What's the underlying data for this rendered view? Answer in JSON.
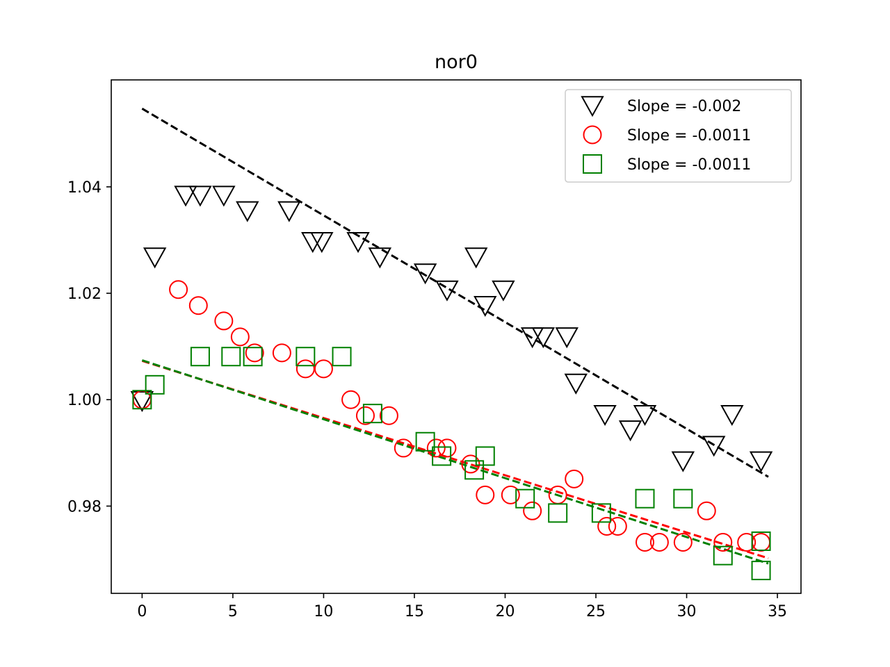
{
  "chart_data": {
    "type": "scatter",
    "title": "nor0",
    "xlabel": "",
    "ylabel": "",
    "xlim": [
      -1.7,
      36.3
    ],
    "ylim": [
      0.9636,
      1.0601
    ],
    "xticks": [
      0,
      5,
      10,
      15,
      20,
      25,
      30,
      35
    ],
    "yticks": [
      0.98,
      1.0,
      1.02,
      1.04
    ],
    "ytick_labels": [
      "0.98",
      "1.00",
      "1.02",
      "1.04"
    ],
    "grid": false,
    "legend_position": "top-right",
    "series": [
      {
        "name": "Slope = -0.002",
        "marker": "triangle-down",
        "color": "#000000",
        "x": [
          0,
          0.7,
          2.4,
          3.2,
          4.5,
          5.8,
          8.1,
          9.4,
          9.9,
          11.9,
          13.1,
          15.6,
          16.8,
          18.4,
          18.9,
          19.9,
          21.5,
          22.1,
          23.4,
          23.9,
          25.5,
          26.9,
          27.7,
          29.8,
          31.5,
          32.5,
          34.1
        ],
        "y": [
          0.9998,
          1.0268,
          1.0384,
          1.0384,
          1.0384,
          1.0355,
          1.0355,
          1.0297,
          1.0297,
          1.0297,
          1.0268,
          1.0238,
          1.0206,
          1.0268,
          1.0177,
          1.0206,
          1.0118,
          1.0118,
          1.0118,
          1.0031,
          0.9972,
          0.9943,
          0.9972,
          0.9885,
          0.9914,
          0.9972,
          0.9885
        ]
      },
      {
        "name": "Slope = -0.0011",
        "marker": "circle",
        "color": "#ff0000",
        "x": [
          0,
          2,
          3.1,
          4.5,
          5.4,
          6.2,
          7.7,
          9,
          10,
          11.5,
          12.3,
          13.6,
          14.4,
          16.2,
          16.8,
          18.1,
          18.9,
          20.3,
          21.5,
          22.9,
          23.8,
          25.6,
          26.2,
          27.7,
          28.5,
          29.8,
          31.1,
          32,
          33.3,
          34.1
        ],
        "y": [
          1.0,
          1.0207,
          1.0177,
          1.0148,
          1.0118,
          1.0088,
          1.0088,
          1.0058,
          1.0058,
          1.0,
          0.997,
          0.997,
          0.9909,
          0.9909,
          0.9909,
          0.9879,
          0.9821,
          0.9821,
          0.9791,
          0.9821,
          0.9851,
          0.9762,
          0.9762,
          0.9732,
          0.9732,
          0.9732,
          0.9791,
          0.9732,
          0.9732,
          0.9732
        ]
      },
      {
        "name": "Slope = -0.0011",
        "marker": "square",
        "color": "#008000",
        "x": [
          0,
          0.7,
          3.2,
          4.9,
          6.1,
          9,
          11,
          12.7,
          15.6,
          16.5,
          18.3,
          18.9,
          21.1,
          22.9,
          25.3,
          27.7,
          29.8,
          32,
          34.1,
          34.1
        ],
        "y": [
          1.0,
          1.0028,
          1.0081,
          1.0081,
          1.0081,
          1.0081,
          1.0081,
          0.9974,
          0.9921,
          0.9894,
          0.9868,
          0.9894,
          0.9814,
          0.9787,
          0.9787,
          0.9814,
          0.9814,
          0.9707,
          0.9734,
          0.9679
        ]
      }
    ],
    "fits": [
      {
        "series": 0,
        "color": "#000000",
        "x": [
          0,
          34.5
        ],
        "y": [
          1.0547,
          0.9855
        ]
      },
      {
        "series": 1,
        "color": "#ff0000",
        "x": [
          0,
          34.5
        ],
        "y": [
          1.0073,
          0.9702
        ]
      },
      {
        "series": 2,
        "color": "#008000",
        "x": [
          0,
          34.5
        ],
        "y": [
          1.0074,
          0.9692
        ]
      }
    ]
  }
}
